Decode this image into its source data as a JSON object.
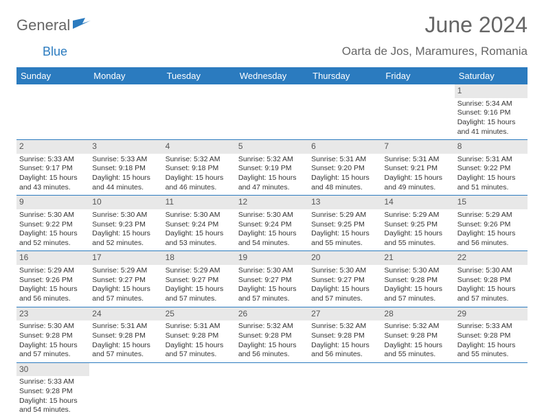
{
  "logo": {
    "text1": "General",
    "text2": "Blue"
  },
  "title": "June 2024",
  "location": "Oarta de Jos, Maramures, Romania",
  "colors": {
    "header_bg": "#2b7bbf",
    "header_text": "#ffffff",
    "daynum_bg": "#e8e8e8",
    "week_border": "#2b7bbf",
    "title_color": "#666666",
    "body_text": "#333333",
    "background": "#ffffff"
  },
  "fonts": {
    "title_size": 32,
    "location_size": 17,
    "dow_size": 13,
    "daynum_size": 12,
    "body_size": 10.5
  },
  "dow": [
    "Sunday",
    "Monday",
    "Tuesday",
    "Wednesday",
    "Thursday",
    "Friday",
    "Saturday"
  ],
  "weeks": [
    [
      null,
      null,
      null,
      null,
      null,
      null,
      {
        "n": "1",
        "sr": "Sunrise: 5:34 AM",
        "ss": "Sunset: 9:16 PM",
        "d1": "Daylight: 15 hours",
        "d2": "and 41 minutes."
      }
    ],
    [
      {
        "n": "2",
        "sr": "Sunrise: 5:33 AM",
        "ss": "Sunset: 9:17 PM",
        "d1": "Daylight: 15 hours",
        "d2": "and 43 minutes."
      },
      {
        "n": "3",
        "sr": "Sunrise: 5:33 AM",
        "ss": "Sunset: 9:18 PM",
        "d1": "Daylight: 15 hours",
        "d2": "and 44 minutes."
      },
      {
        "n": "4",
        "sr": "Sunrise: 5:32 AM",
        "ss": "Sunset: 9:18 PM",
        "d1": "Daylight: 15 hours",
        "d2": "and 46 minutes."
      },
      {
        "n": "5",
        "sr": "Sunrise: 5:32 AM",
        "ss": "Sunset: 9:19 PM",
        "d1": "Daylight: 15 hours",
        "d2": "and 47 minutes."
      },
      {
        "n": "6",
        "sr": "Sunrise: 5:31 AM",
        "ss": "Sunset: 9:20 PM",
        "d1": "Daylight: 15 hours",
        "d2": "and 48 minutes."
      },
      {
        "n": "7",
        "sr": "Sunrise: 5:31 AM",
        "ss": "Sunset: 9:21 PM",
        "d1": "Daylight: 15 hours",
        "d2": "and 49 minutes."
      },
      {
        "n": "8",
        "sr": "Sunrise: 5:31 AM",
        "ss": "Sunset: 9:22 PM",
        "d1": "Daylight: 15 hours",
        "d2": "and 51 minutes."
      }
    ],
    [
      {
        "n": "9",
        "sr": "Sunrise: 5:30 AM",
        "ss": "Sunset: 9:22 PM",
        "d1": "Daylight: 15 hours",
        "d2": "and 52 minutes."
      },
      {
        "n": "10",
        "sr": "Sunrise: 5:30 AM",
        "ss": "Sunset: 9:23 PM",
        "d1": "Daylight: 15 hours",
        "d2": "and 52 minutes."
      },
      {
        "n": "11",
        "sr": "Sunrise: 5:30 AM",
        "ss": "Sunset: 9:24 PM",
        "d1": "Daylight: 15 hours",
        "d2": "and 53 minutes."
      },
      {
        "n": "12",
        "sr": "Sunrise: 5:30 AM",
        "ss": "Sunset: 9:24 PM",
        "d1": "Daylight: 15 hours",
        "d2": "and 54 minutes."
      },
      {
        "n": "13",
        "sr": "Sunrise: 5:29 AM",
        "ss": "Sunset: 9:25 PM",
        "d1": "Daylight: 15 hours",
        "d2": "and 55 minutes."
      },
      {
        "n": "14",
        "sr": "Sunrise: 5:29 AM",
        "ss": "Sunset: 9:25 PM",
        "d1": "Daylight: 15 hours",
        "d2": "and 55 minutes."
      },
      {
        "n": "15",
        "sr": "Sunrise: 5:29 AM",
        "ss": "Sunset: 9:26 PM",
        "d1": "Daylight: 15 hours",
        "d2": "and 56 minutes."
      }
    ],
    [
      {
        "n": "16",
        "sr": "Sunrise: 5:29 AM",
        "ss": "Sunset: 9:26 PM",
        "d1": "Daylight: 15 hours",
        "d2": "and 56 minutes."
      },
      {
        "n": "17",
        "sr": "Sunrise: 5:29 AM",
        "ss": "Sunset: 9:27 PM",
        "d1": "Daylight: 15 hours",
        "d2": "and 57 minutes."
      },
      {
        "n": "18",
        "sr": "Sunrise: 5:29 AM",
        "ss": "Sunset: 9:27 PM",
        "d1": "Daylight: 15 hours",
        "d2": "and 57 minutes."
      },
      {
        "n": "19",
        "sr": "Sunrise: 5:30 AM",
        "ss": "Sunset: 9:27 PM",
        "d1": "Daylight: 15 hours",
        "d2": "and 57 minutes."
      },
      {
        "n": "20",
        "sr": "Sunrise: 5:30 AM",
        "ss": "Sunset: 9:27 PM",
        "d1": "Daylight: 15 hours",
        "d2": "and 57 minutes."
      },
      {
        "n": "21",
        "sr": "Sunrise: 5:30 AM",
        "ss": "Sunset: 9:28 PM",
        "d1": "Daylight: 15 hours",
        "d2": "and 57 minutes."
      },
      {
        "n": "22",
        "sr": "Sunrise: 5:30 AM",
        "ss": "Sunset: 9:28 PM",
        "d1": "Daylight: 15 hours",
        "d2": "and 57 minutes."
      }
    ],
    [
      {
        "n": "23",
        "sr": "Sunrise: 5:30 AM",
        "ss": "Sunset: 9:28 PM",
        "d1": "Daylight: 15 hours",
        "d2": "and 57 minutes."
      },
      {
        "n": "24",
        "sr": "Sunrise: 5:31 AM",
        "ss": "Sunset: 9:28 PM",
        "d1": "Daylight: 15 hours",
        "d2": "and 57 minutes."
      },
      {
        "n": "25",
        "sr": "Sunrise: 5:31 AM",
        "ss": "Sunset: 9:28 PM",
        "d1": "Daylight: 15 hours",
        "d2": "and 57 minutes."
      },
      {
        "n": "26",
        "sr": "Sunrise: 5:32 AM",
        "ss": "Sunset: 9:28 PM",
        "d1": "Daylight: 15 hours",
        "d2": "and 56 minutes."
      },
      {
        "n": "27",
        "sr": "Sunrise: 5:32 AM",
        "ss": "Sunset: 9:28 PM",
        "d1": "Daylight: 15 hours",
        "d2": "and 56 minutes."
      },
      {
        "n": "28",
        "sr": "Sunrise: 5:32 AM",
        "ss": "Sunset: 9:28 PM",
        "d1": "Daylight: 15 hours",
        "d2": "and 55 minutes."
      },
      {
        "n": "29",
        "sr": "Sunrise: 5:33 AM",
        "ss": "Sunset: 9:28 PM",
        "d1": "Daylight: 15 hours",
        "d2": "and 55 minutes."
      }
    ],
    [
      {
        "n": "30",
        "sr": "Sunrise: 5:33 AM",
        "ss": "Sunset: 9:28 PM",
        "d1": "Daylight: 15 hours",
        "d2": "and 54 minutes."
      },
      null,
      null,
      null,
      null,
      null,
      null
    ]
  ]
}
